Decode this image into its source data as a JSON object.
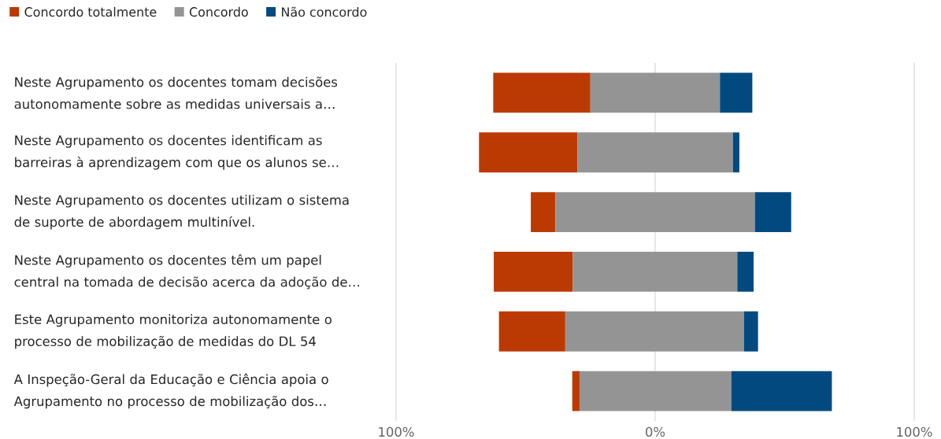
{
  "chart_data": {
    "type": "bar",
    "orientation": "horizontal",
    "categories": [
      "Neste Agrupamento os docentes tomam decisões autonomamente sobre as medidas universais a…",
      "Neste Agrupamento os docentes identificam as barreiras à aprendizagem com que os alunos se…",
      "Neste Agrupamento os docentes utilizam o sistema de suporte de abordagem multinível.",
      "Neste Agrupamento os docentes têm um papel central na tomada de decisão acerca da adoção de…",
      "Este Agrupamento monitoriza autonomamente o processo de mobilização de medidas do DL 54",
      "A Inspeção-Geral da Educação e Ciência apoia o Agrupamento no processo de mobilização dos…"
    ],
    "series": [
      {
        "name": "Concordo totalmente",
        "color": "#bb3a03",
        "base": [
          -62.5,
          -68,
          -48,
          -62.3,
          -60.3,
          -32
        ],
        "values": [
          37.5,
          38,
          9.5,
          30.5,
          25.6,
          2.8
        ]
      },
      {
        "name": "Concordo",
        "color": "#949494",
        "base": [
          -25,
          -30,
          -38.5,
          -31.8,
          -34.7,
          -29.2
        ],
        "values": [
          50,
          60,
          77,
          63.5,
          69,
          58.6
        ]
      },
      {
        "name": "Não concordo",
        "color": "#004a80",
        "base": [
          25,
          30,
          38.5,
          31.7,
          34.3,
          29.4
        ],
        "values": [
          12.5,
          2.5,
          14,
          6.3,
          5.4,
          38.8
        ]
      }
    ],
    "xlim": [
      -100,
      100
    ],
    "xticks": [
      {
        "value": -100,
        "label": "100%"
      },
      {
        "value": 0,
        "label": "0%"
      },
      {
        "value": 100,
        "label": "100%"
      }
    ],
    "grid": "x",
    "legend": "top left"
  }
}
